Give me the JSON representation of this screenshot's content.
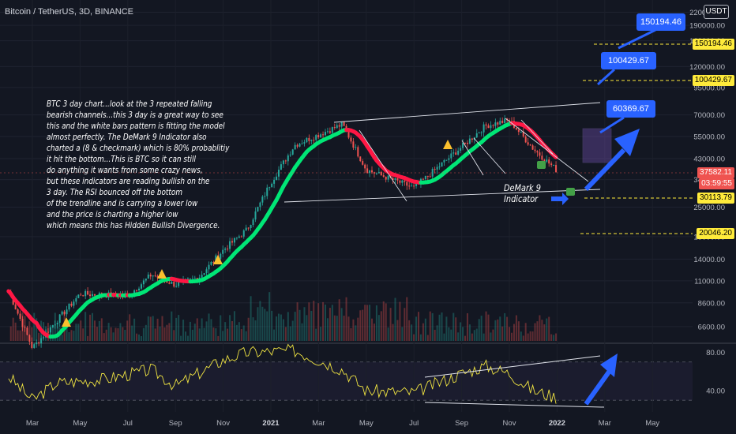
{
  "header": {
    "symbol": "Bitcoin / TetherUS, 3D, BINANCE",
    "currency": "USDT"
  },
  "annotation_lines": [
    "BTC 3 day chart...look at the 3 repeated falling",
    "bearish channels...this 3 day is a great way to see",
    "this and the white bars pattern is fitting the model",
    "almost perfectly. The DeMark 9 Indicator also",
    "charted a (8 & checkmark) which is 80% probablitiy",
    "it hit the bottom...This is BTC so it can still",
    "do anything it wants from some crazy news,",
    "but these indicators are reading bullish on the",
    "3 day. The RSI bounced off the bottom",
    "of the trendline and is carrying a lower low",
    "and the price is charting a higher low",
    "which means this has Hidden Bullish Divergence."
  ],
  "demark_label": {
    "line1": "DeMark 9",
    "line2": "Indicator"
  },
  "targets": {
    "t1": "150194.46",
    "t2": "100429.67",
    "t3": "60369.67"
  },
  "price_tags": {
    "t1": "150194.46",
    "t2": "100429.67",
    "last": "37582.11",
    "countdown": "03:59:55",
    "support": "30113.79",
    "low": "20046.20"
  },
  "colors": {
    "background": "#131722",
    "up": "#26a69a",
    "down": "#ef5350",
    "ma_up": "#00e676",
    "ma_down": "#ff1744",
    "rsi": "#f0e442",
    "target": "#2962ff",
    "level_line": "#ffeb3b"
  },
  "chart_data": [
    {
      "type": "candlestick",
      "title": "Bitcoin / TetherUS, 3D, BINANCE",
      "y_scale": "log",
      "y_ticks": [
        220000,
        190000,
        160000,
        120000,
        95000,
        70000,
        55000,
        43000,
        34000,
        25000,
        18000,
        14000,
        11000,
        8600,
        6600
      ],
      "x_ticks": [
        "Mar",
        "May",
        "Jul",
        "Sep",
        "Nov",
        "2021",
        "Mar",
        "May",
        "Jul",
        "Sep",
        "Nov",
        "2022",
        "Mar",
        "May"
      ],
      "close_path": [
        [
          "Feb 2020",
          9800
        ],
        [
          "Mar 2020",
          5200
        ],
        [
          "Apr 2020",
          7000
        ],
        [
          "May 2020",
          9500
        ],
        [
          "Jul 2020",
          9300
        ],
        [
          "Aug 2020",
          11800
        ],
        [
          "Sep 2020",
          10500
        ],
        [
          "Oct 2020",
          11500
        ],
        [
          "Nov 2020",
          15500
        ],
        [
          "Dec 2020",
          19500
        ],
        [
          "Jan 2021",
          33000
        ],
        [
          "Feb 2021",
          50000
        ],
        [
          "Apr 2021",
          63000
        ],
        [
          "May 2021",
          38000
        ],
        [
          "Jul 2021",
          31000
        ],
        [
          "Sep 2021",
          49000
        ],
        [
          "Oct 2021",
          62000
        ],
        [
          "Nov 2021",
          66000
        ],
        [
          "Dec 2021",
          48000
        ],
        [
          "Jan 2022",
          37582
        ]
      ],
      "levels": [
        150194.46,
        100429.67,
        30113.79,
        20046.2
      ],
      "last_price": 37582.11
    },
    {
      "type": "line",
      "title": "RSI",
      "y_ticks": [
        80,
        40
      ],
      "bands": [
        70,
        30
      ],
      "values": [
        [
          "Feb 2020",
          55
        ],
        [
          "Mar 2020",
          30
        ],
        [
          "Apr 2020",
          48
        ],
        [
          "Jun 2020",
          52
        ],
        [
          "Aug 2020",
          62
        ],
        [
          "Sep 2020",
          45
        ],
        [
          "Nov 2020",
          72
        ],
        [
          "Dec 2020",
          80
        ],
        [
          "Feb 2021",
          82
        ],
        [
          "Apr 2021",
          62
        ],
        [
          "May 2021",
          40
        ],
        [
          "Jul 2021",
          38
        ],
        [
          "Sep 2021",
          58
        ],
        [
          "Oct 2021",
          66
        ],
        [
          "Nov 2021",
          58
        ],
        [
          "Dec 2021",
          40
        ],
        [
          "Jan 2022",
          33
        ]
      ]
    }
  ]
}
